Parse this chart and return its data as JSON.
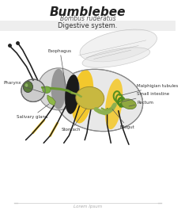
{
  "title": "Bumblebee",
  "subtitle": "Bombus ruderatus",
  "system_label": "Digestive system.",
  "footer": "Lorem Ipsum",
  "bg_color": "#ffffff",
  "header_band_color": "#f0f0f0",
  "labels": {
    "esophagus": "Esophagus",
    "pharynx": "Pharynx",
    "salivary_gland": "Salivary gland",
    "stomach": "Stomach",
    "midgut": "Midgut",
    "malphigian": "Malphigian tubules",
    "small_intestine": "Small intestine",
    "rectum": "Rectum"
  },
  "bee_body_color": "#e8e8e8",
  "bee_outline_color": "#555555",
  "bee_stripe_color": "#f5c518",
  "bee_dark_color": "#222222",
  "wing_color": "#d0d0d0",
  "digestive_green": "#8db050",
  "digestive_yellow": "#c8b840",
  "digestive_light": "#b8c870"
}
